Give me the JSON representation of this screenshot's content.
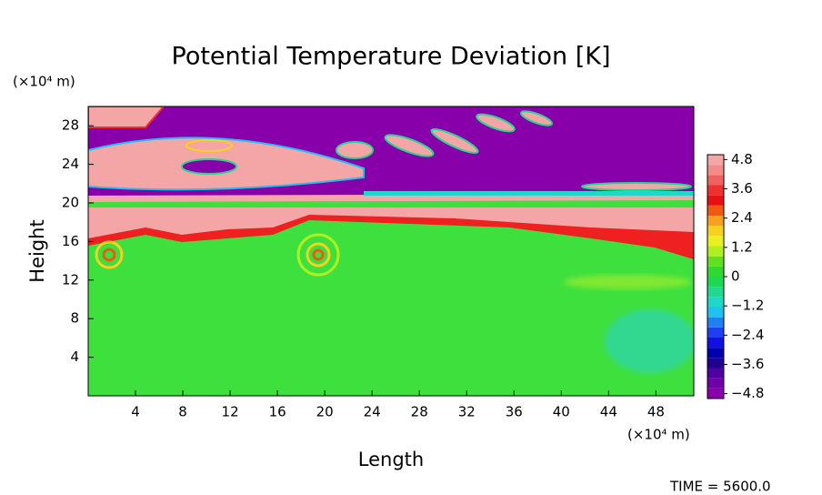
{
  "chart_data": {
    "type": "field",
    "title": "Potential Temperature Deviation [K]",
    "x_label": "Length",
    "y_label": "Height",
    "x_unit": "(×10⁴ m)",
    "y_unit": "(×10⁴ m)",
    "annotation": "TIME = 5600.0",
    "xlim": [
      0,
      51.2
    ],
    "xticks": [
      4,
      8,
      12,
      16,
      20,
      24,
      28,
      32,
      36,
      40,
      44,
      48
    ],
    "ylim": [
      0,
      30
    ],
    "yticks": [
      4,
      8,
      12,
      16,
      20,
      24,
      28
    ],
    "colorbar": {
      "clim": [
        -5,
        5
      ],
      "colors": [
        "#8800aa",
        "#7000a8",
        "#5000a0",
        "#200090",
        "#0000b0",
        "#1010e0",
        "#2040f0",
        "#2080f0",
        "#20c0f0",
        "#20d8c8",
        "#20d890",
        "#20d850",
        "#30d830",
        "#60e020",
        "#b0f020",
        "#e8f020",
        "#f8d020",
        "#f8a020",
        "#f05a10",
        "#e81010",
        "#ee3030",
        "#f26060",
        "#f58a8a",
        "#f4a6a6"
      ],
      "ticks": [
        4.8,
        3.6,
        2.4,
        1.2,
        0,
        {
          "value": -1.2,
          "label": "−1.2"
        },
        {
          "value": -2.4,
          "label": "−2.4"
        },
        {
          "value": -3.6,
          "label": "−3.6"
        },
        {
          "value": -4.8,
          "label": "−4.8"
        }
      ]
    }
  }
}
